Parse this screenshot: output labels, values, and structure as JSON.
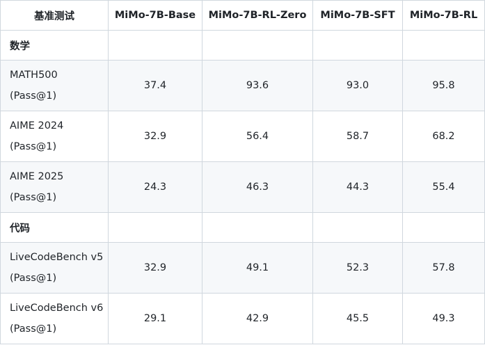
{
  "header": {
    "col0": "基准测试",
    "col1": "MiMo-7B-Base",
    "col2": "MiMo-7B-RL-Zero",
    "col3": "MiMo-7B-SFT",
    "col4": "MiMo-7B-RL"
  },
  "sections": [
    {
      "label": "数学",
      "rows": [
        {
          "name": "MATH500",
          "metric": "(Pass@1)",
          "values": [
            "37.4",
            "93.6",
            "93.0",
            "95.8"
          ]
        },
        {
          "name": "AIME 2024",
          "metric": "(Pass@1)",
          "values": [
            "32.9",
            "56.4",
            "58.7",
            "68.2"
          ]
        },
        {
          "name": "AIME 2025",
          "metric": "(Pass@1)",
          "values": [
            "24.3",
            "46.3",
            "44.3",
            "55.4"
          ]
        }
      ]
    },
    {
      "label": "代码",
      "rows": [
        {
          "name": "LiveCodeBench v5",
          "metric": "(Pass@1)",
          "values": [
            "32.9",
            "49.1",
            "52.3",
            "57.8"
          ]
        },
        {
          "name": "LiveCodeBench v6",
          "metric": "(Pass@1)",
          "values": [
            "29.1",
            "42.9",
            "45.5",
            "49.3"
          ]
        }
      ]
    }
  ]
}
